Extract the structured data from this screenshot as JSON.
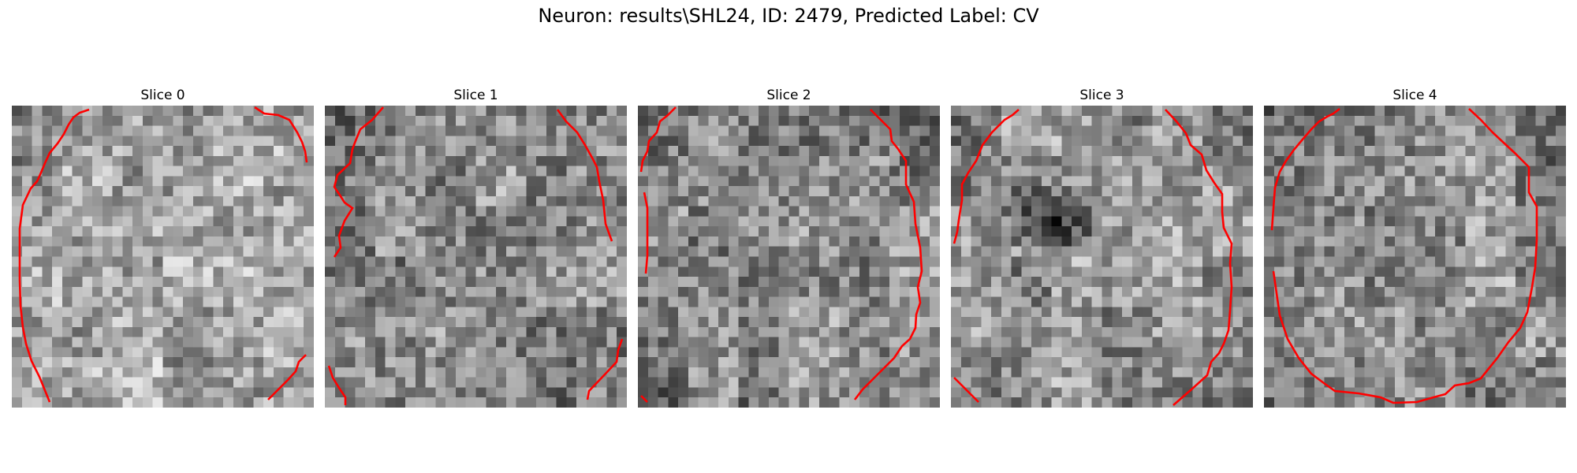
{
  "figure": {
    "title": "Neuron: results\\SHL24, ID: 2479, Predicted Label: CV"
  },
  "colors": {
    "contour": "#ff0000",
    "colormap": "gray"
  },
  "panels": [
    {
      "label": "Slice 0",
      "mean_intensity": 0.66,
      "seed": 11,
      "dark_blob": null
    },
    {
      "label": "Slice 1",
      "mean_intensity": 0.55,
      "seed": 23,
      "dark_blob": null
    },
    {
      "label": "Slice 2",
      "mean_intensity": 0.55,
      "seed": 37,
      "dark_blob": null
    },
    {
      "label": "Slice 3",
      "mean_intensity": 0.58,
      "seed": 41,
      "dark_blob": "left-center"
    },
    {
      "label": "Slice 4",
      "mean_intensity": 0.57,
      "seed": 53,
      "dark_blob": null
    }
  ]
}
